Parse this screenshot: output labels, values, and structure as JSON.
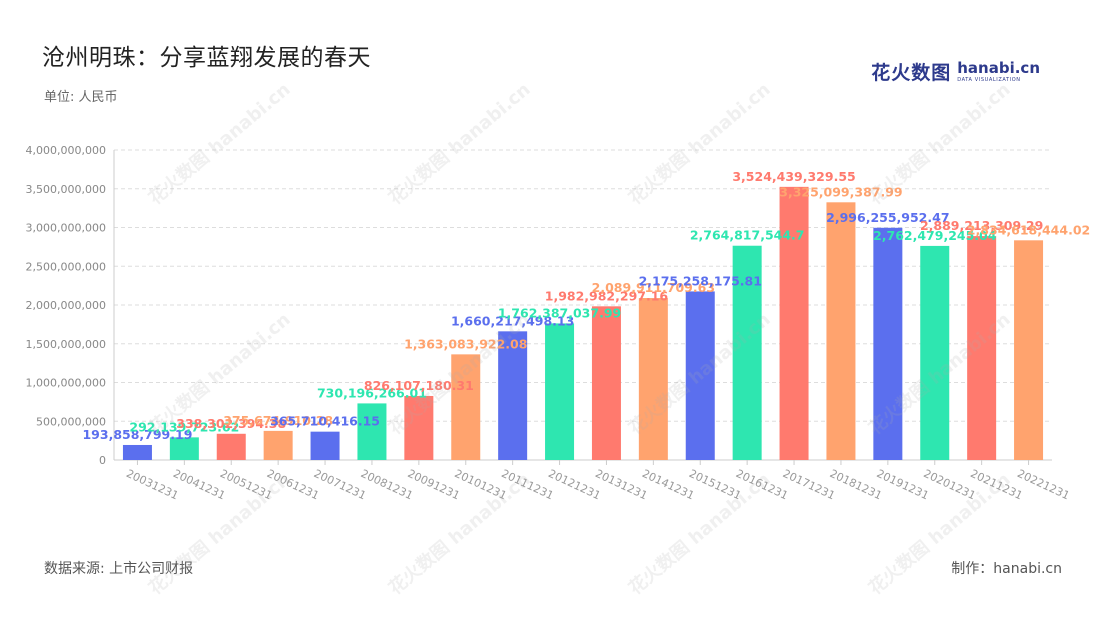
{
  "header": {
    "title": "沧州明珠：分享蓝翔发展的春天",
    "unit": "单位: 人民币"
  },
  "logo": {
    "cn": "花火数图",
    "en": "hanabi.cn",
    "en_sub": "DATA VISUALIZATION"
  },
  "footer": {
    "source": "数据来源: 上市公司财报",
    "credit": "制作：hanabi.cn"
  },
  "watermark_text": "花火数图 hanabi.cn",
  "colors": {
    "blue": "#5b6fee",
    "green": "#2ee6b0",
    "red": "#ff7a6e",
    "orange": "#ffa36e",
    "grid": "#dddddd",
    "axis_text": "#888888"
  },
  "chart_data": {
    "type": "bar",
    "title": "沧州明珠：分享蓝翔发展的春天",
    "ylabel": "单位: 人民币",
    "ylim": [
      0,
      4000000000
    ],
    "yticks": [
      0,
      500000000,
      1000000000,
      1500000000,
      2000000000,
      2500000000,
      3000000000,
      3500000000,
      4000000000
    ],
    "ytick_labels": [
      "0",
      "500,000,000",
      "1,000,000,000",
      "1,500,000,000",
      "2,000,000,000",
      "2,500,000,000",
      "3,000,000,000",
      "3,500,000,000",
      "4,000,000,000"
    ],
    "grid": true,
    "categories": [
      "20031231",
      "20041231",
      "20051231",
      "20061231",
      "20071231",
      "20081231",
      "20091231",
      "20101231",
      "20111231",
      "20121231",
      "20131231",
      "20141231",
      "20151231",
      "20161231",
      "20171231",
      "20181231",
      "20191231",
      "20201231",
      "20211231",
      "20221231"
    ],
    "values": [
      193858799.19,
      292139723.62,
      338302394.38,
      375674910.28,
      365710416.15,
      730196266.01,
      826107180.31,
      1363083922.08,
      1660217498.13,
      1762387037.99,
      1982982297.16,
      2089911709.63,
      2175258175.81,
      2764817544.7,
      3524439329.55,
      3325099387.99,
      2996255952.47,
      2762479245.04,
      2889213309.29,
      2834618444.02
    ],
    "labels": [
      "193,858,799.19",
      "292,139,723.62",
      "338,302,394.38",
      "375,674,910.28",
      "365,710,416.15",
      "730,196,266.01",
      "826,107,180.31",
      "1,363,083,922.08",
      "1,660,217,498.13",
      "1,762,387,037.99",
      "1,982,982,297.16",
      "2,089,911,709.63",
      "2,175,258,175.81",
      "2,764,817,544.7",
      "3,524,439,329.55",
      "3,325,099,387.99",
      "2,996,255,952.47",
      "2,762,479,245.04",
      "2,889,213,309.29",
      "2,834,618,444.02"
    ],
    "bar_colors": [
      "blue",
      "green",
      "red",
      "orange",
      "blue",
      "green",
      "red",
      "orange",
      "blue",
      "green",
      "red",
      "orange",
      "blue",
      "green",
      "red",
      "orange",
      "blue",
      "green",
      "red",
      "orange"
    ]
  }
}
